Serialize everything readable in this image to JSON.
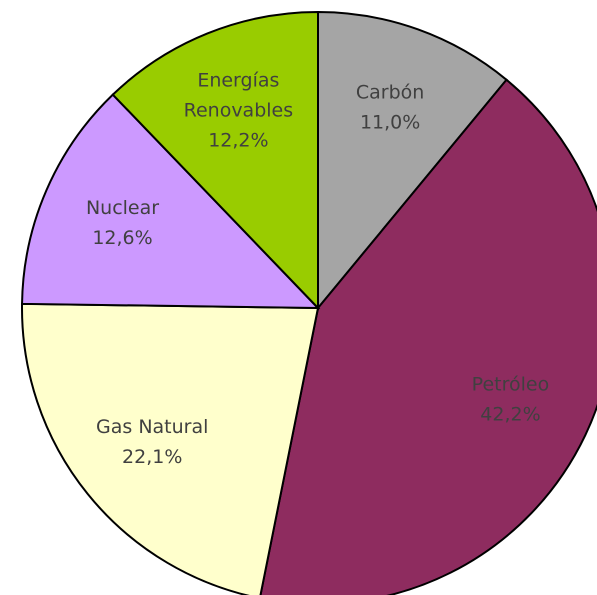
{
  "chart_data": {
    "type": "pie",
    "categories": [
      "Carbón",
      "Petróleo",
      "Gas Natural",
      "Nuclear",
      "Energías Renovables"
    ],
    "values": [
      11.0,
      42.2,
      22.1,
      12.6,
      12.2
    ],
    "value_labels": [
      "11,0%",
      "42,2%",
      "22,1%",
      "12,6%",
      "12,2%"
    ],
    "colors": [
      "#a5a5a5",
      "#8e2c5f",
      "#ffffcc",
      "#cc99ff",
      "#99cc00"
    ]
  }
}
